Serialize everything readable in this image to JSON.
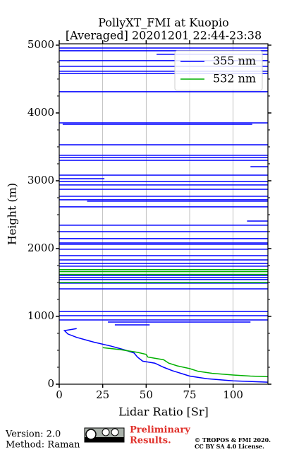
{
  "chart_data": {
    "type": "line",
    "title": [
      "PollyXT_FMI at Kuopio",
      "[Averaged] 20201201 22:44-23:38"
    ],
    "xlabel": "Lidar Ratio [Sr]",
    "ylabel": "Height (m)",
    "xlim": [
      0,
      120
    ],
    "ylim": [
      0,
      5020
    ],
    "xticks": [
      0,
      25,
      50,
      75,
      100
    ],
    "yticks": [
      0,
      1000,
      2000,
      3000,
      4000,
      5000
    ],
    "yminorticks": [
      250,
      500,
      750,
      1250,
      1500,
      1750,
      2250,
      2500,
      2750,
      3250,
      3500,
      3750,
      4250,
      4500,
      4750
    ],
    "grid": "x",
    "legend": "upper right",
    "series": [
      {
        "name": "355 nm",
        "color": "#0000ff",
        "x": [
          0,
          120,
          null,
          0,
          120,
          null,
          56,
          120,
          null,
          0,
          120,
          null,
          0,
          120,
          null,
          0,
          120,
          null,
          0,
          120,
          null,
          0,
          120,
          null,
          0,
          120,
          null,
          2,
          111,
          null,
          0,
          120,
          null,
          0,
          120,
          null,
          0,
          120,
          null,
          0,
          120,
          null,
          110,
          120,
          null,
          0,
          120,
          null,
          0,
          26,
          null,
          0,
          120,
          null,
          0,
          120,
          null,
          0,
          120,
          null,
          0,
          120,
          null,
          0,
          120,
          null,
          16,
          120,
          null,
          0,
          120,
          null,
          108,
          120,
          null,
          0,
          120,
          null,
          0,
          120,
          null,
          0,
          120,
          null,
          0,
          120,
          null,
          0,
          120,
          null,
          0,
          120,
          null,
          0,
          120,
          null,
          0,
          120,
          null,
          0,
          120,
          null,
          0,
          120,
          null,
          0,
          120,
          null,
          0,
          120,
          null,
          0,
          120,
          null,
          0,
          120,
          null,
          0,
          120,
          null,
          0,
          120,
          null,
          0,
          120,
          null,
          0,
          120,
          null,
          0,
          120,
          null,
          28,
          110,
          null,
          32,
          52,
          null,
          10,
          3,
          5,
          10,
          20,
          30,
          37,
          43,
          45,
          48,
          55,
          60,
          65,
          75,
          85,
          100,
          120
        ],
        "y": [
          4958,
          4958,
          null,
          4917,
          4917,
          null,
          4865,
          4865,
          null,
          4771,
          4771,
          null,
          4688,
          4688,
          null,
          4615,
          4615,
          null,
          4583,
          4583,
          null,
          4313,
          4313,
          null,
          3854,
          3854,
          null,
          3833,
          3833,
          null,
          3531,
          3531,
          null,
          3375,
          3375,
          null,
          3344,
          3344,
          null,
          3302,
          3302,
          null,
          3208,
          3208,
          null,
          3083,
          3083,
          null,
          3031,
          3031,
          null,
          2990,
          2990,
          null,
          2938,
          2938,
          null,
          2875,
          2875,
          null,
          2771,
          2771,
          null,
          2719,
          2719,
          null,
          2698,
          2698,
          null,
          2615,
          2615,
          null,
          2406,
          2406,
          null,
          2344,
          2344,
          null,
          2250,
          2250,
          null,
          2146,
          2146,
          null,
          2083,
          2083,
          null,
          2063,
          2063,
          null,
          1990,
          1990,
          null,
          1896,
          1896,
          null,
          1833,
          1833,
          null,
          1781,
          1781,
          null,
          1740,
          1740,
          null,
          1688,
          1688,
          null,
          1604,
          1604,
          null,
          1573,
          1573,
          null,
          1542,
          1542,
          null,
          1490,
          1490,
          null,
          1406,
          1406,
          null,
          1073,
          1073,
          null,
          1010,
          1010,
          null,
          948,
          948,
          null,
          917,
          917,
          null,
          875,
          875,
          null,
          820,
          790,
          740,
          690,
          620,
          560,
          510,
          460,
          400,
          340,
          310,
          250,
          200,
          120,
          80,
          50,
          30
        ]
      },
      {
        "name": "532 nm",
        "color": "#00b000",
        "x": [
          0,
          120,
          null,
          0,
          120,
          null,
          0,
          120,
          null,
          0,
          120,
          null,
          25,
          35,
          45,
          50,
          51,
          60,
          63,
          68,
          75,
          80,
          88,
          100,
          110,
          120
        ],
        "y": [
          1690,
          1690,
          null,
          1660,
          1660,
          null,
          1620,
          1620,
          null,
          1500,
          1500,
          null,
          540,
          510,
          470,
          440,
          400,
          360,
          310,
          270,
          230,
          190,
          160,
          135,
          120,
          110
        ]
      }
    ]
  },
  "footer": {
    "version": "Version: 2.0",
    "method": "Method: Raman",
    "notice": [
      "Preliminary",
      "Results."
    ],
    "copyright": [
      "© TROPOS & FMI 2020.",
      "CC BY SA 4.0 License."
    ]
  }
}
